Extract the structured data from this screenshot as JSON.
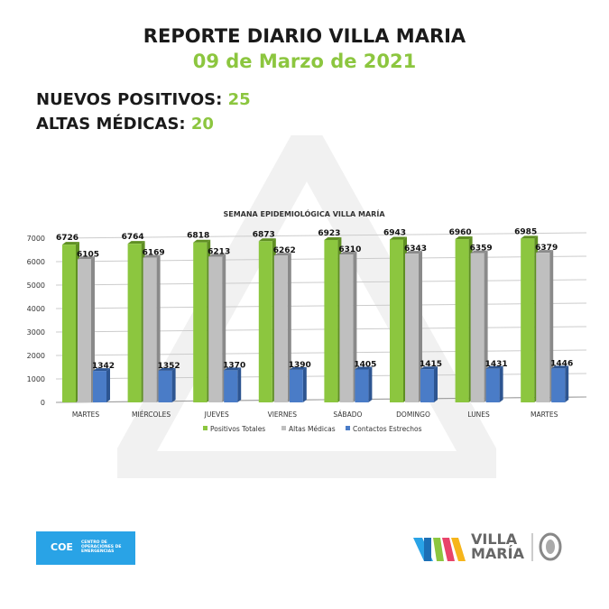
{
  "header": {
    "title": "REPORTE DIARIO VILLA MARIA",
    "date": "09 de Marzo de 2021"
  },
  "stats": [
    {
      "label": "NUEVOS POSITIVOS:",
      "value": "25"
    },
    {
      "label": "ALTAS MÉDICAS:",
      "value": "20"
    }
  ],
  "colors": {
    "green": "#8cc63f",
    "grey": "#bfbfbf",
    "blue": "#4a7cc7"
  },
  "chart_data": {
    "type": "bar",
    "title": "SEMANA EPIDEMIOLÓGICA VILLA MARÍA",
    "categories": [
      "MARTES",
      "MIÉRCOLES",
      "JUEVES",
      "VIERNES",
      "SÁBADO",
      "DOMINGO",
      "LUNES",
      "MARTES"
    ],
    "series": [
      {
        "name": "Positivos Totales",
        "color": "#8cc63f",
        "values": [
          6726,
          6764,
          6818,
          6873,
          6923,
          6943,
          6960,
          6985
        ]
      },
      {
        "name": "Altas Médicas",
        "color": "#bfbfbf",
        "values": [
          6105,
          6169,
          6213,
          6262,
          6310,
          6343,
          6359,
          6379
        ]
      },
      {
        "name": "Contactos Estrechos",
        "color": "#4a7cc7",
        "values": [
          1342,
          1352,
          1370,
          1390,
          1405,
          1415,
          1431,
          1446
        ]
      }
    ],
    "yticks": [
      0,
      1000,
      2000,
      3000,
      4000,
      5000,
      6000,
      7000
    ],
    "ylim": [
      0,
      7000
    ],
    "grid": true,
    "legend": "bottom"
  },
  "footer": {
    "coe_abbr": "COE",
    "coe_name": "CENTRO DE OPERACIONES DE EMERGENCIAS",
    "city_line1": "VILLA",
    "city_line2": "MARÍA"
  }
}
